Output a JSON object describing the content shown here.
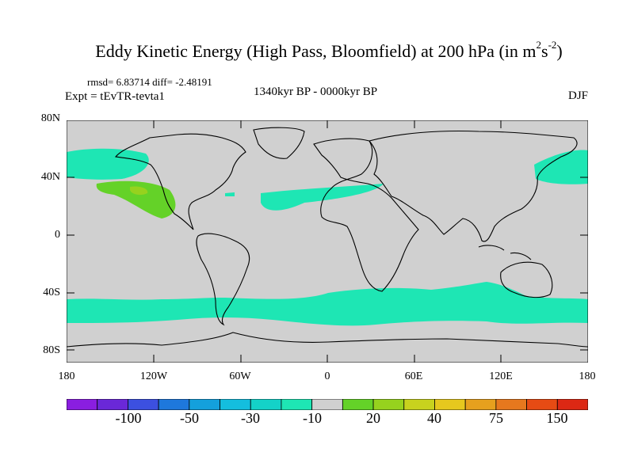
{
  "title": {
    "main": "Eddy Kinetic Energy (High Pass, Bloomfield) at 200 hPa (in m",
    "sup1": "2",
    "mid": "s",
    "sup2": "-2",
    "end": ")"
  },
  "stats": "rmsd= 6.83714 diff= -2.48191",
  "experiment": "Expt = tEvTR-tevta1",
  "period": "1340kyr BP - 0000kyr BP",
  "season": "DJF",
  "map": {
    "lat_ticks": [
      "80N",
      "40N",
      "0",
      "40S",
      "80S"
    ],
    "lon_ticks": [
      "180",
      "120W",
      "60W",
      "0",
      "60E",
      "120E",
      "180"
    ],
    "background_color": "#d0d0d0",
    "regions": [
      {
        "name": "north-pacific-east-anomaly",
        "level": "-10"
      },
      {
        "name": "north-pacific-west-anomaly",
        "level": "-10"
      },
      {
        "name": "north-atlantic-anomaly",
        "level": "-10"
      },
      {
        "name": "eastern-pacific-positive-anomaly",
        "level": "20"
      },
      {
        "name": "eastern-pacific-core-anomaly",
        "level": "30"
      },
      {
        "name": "southern-ocean-band-anomaly",
        "level": "-10"
      }
    ]
  },
  "colorbar": {
    "colors": [
      "#8a1ee0",
      "#6a28d8",
      "#3c50e0",
      "#1e78dc",
      "#14a0dc",
      "#14bede",
      "#14d2c8",
      "#1ee6b4",
      "#d0d0d0",
      "#64d228",
      "#96d21e",
      "#c8d21e",
      "#e6c81e",
      "#e6a01e",
      "#e6781e",
      "#e64b14",
      "#dc2814"
    ],
    "labels": [
      "-100",
      "-50",
      "-30",
      "-10",
      "20",
      "40",
      "75",
      "150"
    ]
  }
}
